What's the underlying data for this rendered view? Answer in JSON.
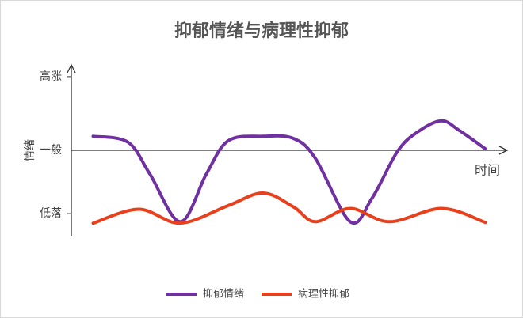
{
  "chart_data": {
    "type": "line",
    "title": "抑郁情绪与病理性抑郁",
    "xlabel": "时间",
    "ylabel": "情绪",
    "xlim": [
      0,
      100
    ],
    "ylim": [
      -1.16,
      1.16
    ],
    "yticks": [
      {
        "value": -0.86,
        "label": "低落"
      },
      {
        "value": 0,
        "label": "一般"
      },
      {
        "value": 1,
        "label": "高涨"
      }
    ],
    "legend": "bottom",
    "series": [
      {
        "name": "抑郁情绪",
        "color": "#7030a0",
        "x": [
          5,
          13,
          18,
          25,
          31,
          36,
          44,
          51,
          56,
          64,
          69,
          75,
          80,
          85,
          89,
          95
        ],
        "values": [
          0.19,
          0.11,
          -0.32,
          -0.97,
          -0.32,
          0.13,
          0.19,
          0.16,
          -0.11,
          -0.97,
          -0.65,
          0,
          0.27,
          0.4,
          0.27,
          0.02
        ]
      },
      {
        "name": "病理性抑郁",
        "color": "#e8401c",
        "x": [
          5,
          15.5,
          25,
          36,
          44,
          51,
          56,
          64,
          73,
          85,
          95
        ],
        "values": [
          -0.99,
          -0.8,
          -0.99,
          -0.75,
          -0.58,
          -0.77,
          -0.97,
          -0.79,
          -0.97,
          -0.79,
          -0.98
        ]
      }
    ]
  }
}
